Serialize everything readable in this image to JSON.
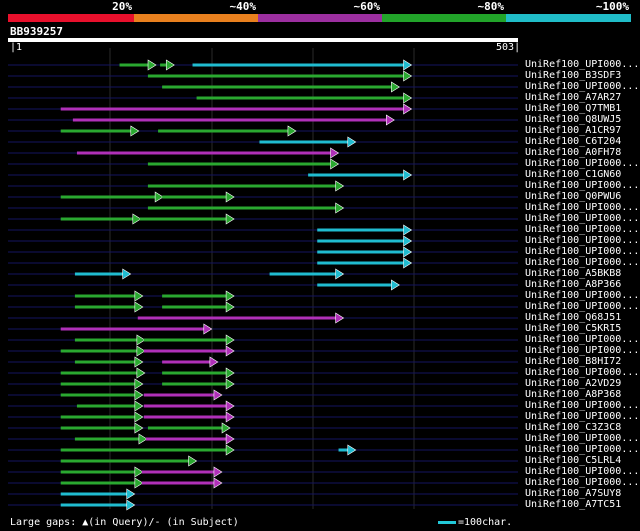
{
  "scale": {
    "segments": [
      {
        "label": "20%",
        "color": "#e8102c"
      },
      {
        "label": "~40%",
        "color": "#e8801e"
      },
      {
        "label": "~60%",
        "color": "#9c2fa0"
      },
      {
        "label": "~80%",
        "color": "#22a42a"
      },
      {
        "label": "~100%",
        "color": "#20bcc8"
      }
    ]
  },
  "query": {
    "name": "BB939257",
    "start": "1",
    "end": "503",
    "length": 503
  },
  "colors": {
    "green": "#2aa830",
    "purple": "#b030b8",
    "cyan": "#20bcd0",
    "guide": "#151560",
    "grid": "#2a2a2a"
  },
  "hits": [
    {
      "label": "UniRef100_UPI000...",
      "segs": [
        [
          110,
          145,
          "green"
        ],
        [
          150,
          163,
          "green"
        ],
        [
          182,
          397,
          "cyan"
        ]
      ]
    },
    {
      "label": "UniRef100_B3SDF3",
      "segs": [
        [
          138,
          397,
          "green"
        ]
      ]
    },
    {
      "label": "UniRef100_UPI000...",
      "segs": [
        [
          152,
          385,
          "green"
        ]
      ]
    },
    {
      "label": "UniRef100_A7AR27",
      "segs": [
        [
          186,
          397,
          "green"
        ]
      ]
    },
    {
      "label": "UniRef100_Q7TMB1",
      "segs": [
        [
          52,
          397,
          "purple"
        ]
      ]
    },
    {
      "label": "UniRef100_Q8UWJ5",
      "segs": [
        [
          64,
          380,
          "purple"
        ]
      ]
    },
    {
      "label": "UniRef100_A1CR97",
      "segs": [
        [
          52,
          128,
          "green"
        ],
        [
          148,
          283,
          "green"
        ]
      ]
    },
    {
      "label": "UniRef100_C6T204",
      "segs": [
        [
          248,
          342,
          "cyan"
        ]
      ]
    },
    {
      "label": "UniRef100_A0FH78",
      "segs": [
        [
          68,
          325,
          "purple"
        ]
      ]
    },
    {
      "label": "UniRef100_UPI000...",
      "segs": [
        [
          138,
          325,
          "green"
        ]
      ]
    },
    {
      "label": "UniRef100_C1GN60",
      "segs": [
        [
          296,
          397,
          "cyan"
        ]
      ]
    },
    {
      "label": "UniRef100_UPI000...",
      "segs": [
        [
          138,
          330,
          "green"
        ]
      ]
    },
    {
      "label": "UniRef100_Q0PWU6",
      "segs": [
        [
          52,
          152,
          "green"
        ],
        [
          152,
          222,
          "green"
        ]
      ]
    },
    {
      "label": "UniRef100_UPI000...",
      "segs": [
        [
          138,
          330,
          "green"
        ]
      ]
    },
    {
      "label": "UniRef100_UPI000...",
      "segs": [
        [
          52,
          130,
          "green"
        ],
        [
          130,
          222,
          "green"
        ]
      ]
    },
    {
      "label": "UniRef100_UPI000...",
      "segs": [
        [
          305,
          397,
          "cyan"
        ]
      ]
    },
    {
      "label": "UniRef100_UPI000...",
      "segs": [
        [
          305,
          397,
          "cyan"
        ]
      ]
    },
    {
      "label": "UniRef100_UPI000...",
      "segs": [
        [
          305,
          397,
          "cyan"
        ]
      ]
    },
    {
      "label": "UniRef100_UPI000...",
      "segs": [
        [
          305,
          397,
          "cyan"
        ]
      ]
    },
    {
      "label": "UniRef100_A5BKB8",
      "segs": [
        [
          66,
          120,
          "cyan"
        ],
        [
          258,
          330,
          "cyan"
        ]
      ]
    },
    {
      "label": "UniRef100_A8P366",
      "segs": [
        [
          305,
          385,
          "cyan"
        ]
      ]
    },
    {
      "label": "UniRef100_UPI000...",
      "segs": [
        [
          66,
          132,
          "green"
        ],
        [
          152,
          222,
          "green"
        ]
      ]
    },
    {
      "label": "UniRef100_UPI000...",
      "segs": [
        [
          66,
          132,
          "green"
        ],
        [
          152,
          222,
          "green"
        ]
      ]
    },
    {
      "label": "UniRef100_Q68J51",
      "segs": [
        [
          128,
          330,
          "purple"
        ]
      ]
    },
    {
      "label": "UniRef100_C5KRI5",
      "segs": [
        [
          52,
          200,
          "purple"
        ]
      ]
    },
    {
      "label": "UniRef100_UPI000...",
      "segs": [
        [
          66,
          134,
          "green"
        ],
        [
          134,
          222,
          "green"
        ]
      ]
    },
    {
      "label": "UniRef100_UPI000...",
      "segs": [
        [
          52,
          134,
          "green"
        ],
        [
          134,
          222,
          "purple"
        ]
      ]
    },
    {
      "label": "UniRef100_B8HI72",
      "segs": [
        [
          66,
          132,
          "green"
        ],
        [
          152,
          206,
          "purple"
        ]
      ]
    },
    {
      "label": "UniRef100_UPI000...",
      "segs": [
        [
          52,
          134,
          "green"
        ],
        [
          152,
          222,
          "green"
        ]
      ]
    },
    {
      "label": "UniRef100_A2VD29",
      "segs": [
        [
          52,
          132,
          "green"
        ],
        [
          152,
          222,
          "green"
        ]
      ]
    },
    {
      "label": "UniRef100_A8P368",
      "segs": [
        [
          52,
          132,
          "green"
        ],
        [
          134,
          210,
          "purple"
        ]
      ]
    },
    {
      "label": "UniRef100_UPI000...",
      "segs": [
        [
          68,
          132,
          "green"
        ],
        [
          134,
          222,
          "purple"
        ]
      ]
    },
    {
      "label": "UniRef100_UPI000...",
      "segs": [
        [
          52,
          132,
          "green"
        ],
        [
          134,
          222,
          "purple"
        ]
      ]
    },
    {
      "label": "UniRef100_C3Z3C8",
      "segs": [
        [
          52,
          132,
          "green"
        ],
        [
          138,
          218,
          "green"
        ]
      ]
    },
    {
      "label": "UniRef100_UPI000...",
      "segs": [
        [
          66,
          136,
          "green"
        ],
        [
          136,
          222,
          "purple"
        ]
      ]
    },
    {
      "label": "UniRef100_UPI000...",
      "segs": [
        [
          52,
          222,
          "green"
        ],
        [
          326,
          342,
          "cyan"
        ]
      ]
    },
    {
      "label": "UniRef100_C5LRL4",
      "segs": [
        [
          52,
          185,
          "green"
        ]
      ]
    },
    {
      "label": "UniRef100_UPI000...",
      "segs": [
        [
          52,
          132,
          "green"
        ],
        [
          132,
          210,
          "purple"
        ]
      ]
    },
    {
      "label": "UniRef100_UPI000...",
      "segs": [
        [
          52,
          132,
          "green"
        ],
        [
          132,
          210,
          "purple"
        ]
      ]
    },
    {
      "label": "UniRef100_A7SUY8",
      "segs": [
        [
          52,
          124,
          "cyan"
        ]
      ]
    },
    {
      "label": "UniRef100_A7TC51",
      "segs": [
        [
          52,
          124,
          "cyan"
        ]
      ]
    }
  ],
  "legend": {
    "gaps": "Large gaps: ▲(in Query)/- (in Subject)",
    "scale": "=100char."
  }
}
